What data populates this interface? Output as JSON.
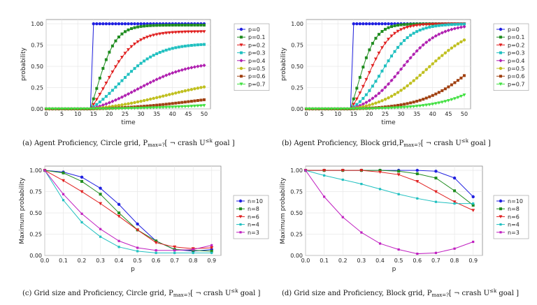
{
  "palettes": {
    "p": [
      "#2020e0",
      "#1f8c1f",
      "#e02020",
      "#20c0c0",
      "#b020b0",
      "#c0c020",
      "#a04010",
      "#40e040"
    ],
    "n": [
      "#2020e0",
      "#1f8c1f",
      "#e02020",
      "#20c0c0",
      "#c020c0"
    ]
  },
  "chart_data": [
    {
      "type": "line",
      "xlabel": "time",
      "ylabel": "probability",
      "xlim": [
        0,
        52
      ],
      "ylim": [
        0,
        1.05
      ],
      "xticks": [
        0,
        5,
        10,
        15,
        20,
        25,
        30,
        35,
        40,
        45,
        50
      ],
      "xtick_labels": [
        "0",
        "5",
        "10",
        "15",
        "20",
        "25",
        "30",
        "35",
        "40",
        "45",
        "50"
      ],
      "yticks": [
        0,
        0.25,
        0.5,
        0.75,
        1.0
      ],
      "ytick_labels": [
        "0.00",
        "0.25",
        "0.50",
        "0.75",
        "1.00"
      ],
      "grid": true,
      "legend": "right",
      "palette": "p",
      "caption": {
        "prefix": "(a)  Agent Proficiency, Circle grid, P",
        "sub": "max=?",
        "mid": "[ ¬ crash U",
        "sup": "≤k",
        "suffix": " goal ]"
      },
      "series": [
        {
          "name": "p=0",
          "t0": 14,
          "final": 1.0,
          "k": 10,
          "mid": 14
        },
        {
          "name": "p=0.1",
          "t0": 14,
          "final": 0.985,
          "k": 0.32,
          "mid": 15.8
        },
        {
          "name": "p=0.2",
          "t0": 14,
          "final": 0.91,
          "k": 0.22,
          "mid": 19
        },
        {
          "name": "p=0.3",
          "t0": 14,
          "final": 0.77,
          "k": 0.16,
          "mid": 23
        },
        {
          "name": "p=0.4",
          "t0": 14,
          "final": 0.56,
          "k": 0.12,
          "mid": 29
        },
        {
          "name": "p=0.5",
          "t0": 14,
          "final": 0.36,
          "k": 0.09,
          "mid": 38
        },
        {
          "name": "p=0.6",
          "t0": 14,
          "final": 0.2,
          "k": 0.085,
          "mid": 47
        },
        {
          "name": "p=0.7",
          "t0": 14,
          "final": 0.1,
          "k": 0.08,
          "mid": 54
        }
      ]
    },
    {
      "type": "line",
      "xlabel": "time",
      "ylabel": "probability",
      "xlim": [
        0,
        52
      ],
      "ylim": [
        0,
        1.05
      ],
      "xticks": [
        0,
        5,
        10,
        15,
        20,
        25,
        30,
        35,
        40,
        45,
        50
      ],
      "xtick_labels": [
        "0",
        "5",
        "10",
        "15",
        "20",
        "25",
        "30",
        "35",
        "40",
        "45",
        "50"
      ],
      "yticks": [
        0,
        0.25,
        0.5,
        0.75,
        1.0
      ],
      "ytick_labels": [
        "0.00",
        "0.25",
        "0.50",
        "0.75",
        "1.00"
      ],
      "grid": true,
      "legend": "right",
      "palette": "p",
      "caption": {
        "prefix": "(b)  Agent Proficiency, Block grid,P",
        "sub": "max=?",
        "mid": "[ ¬ crash U",
        "sup": "≤k",
        "suffix": " goal ]"
      },
      "series": [
        {
          "name": "p=0",
          "t0": 14,
          "final": 1.0,
          "k": 10,
          "mid": 14
        },
        {
          "name": "p=0.1",
          "t0": 14,
          "final": 1.0,
          "k": 0.35,
          "mid": 16.2
        },
        {
          "name": "p=0.2",
          "t0": 14,
          "final": 1.0,
          "k": 0.27,
          "mid": 19.5
        },
        {
          "name": "p=0.3",
          "t0": 14,
          "final": 1.0,
          "k": 0.22,
          "mid": 24
        },
        {
          "name": "p=0.4",
          "t0": 14,
          "final": 1.0,
          "k": 0.17,
          "mid": 30
        },
        {
          "name": "p=0.5",
          "t0": 14,
          "final": 1.0,
          "k": 0.13,
          "mid": 38.5
        },
        {
          "name": "p=0.6",
          "t0": 14,
          "final": 1.0,
          "k": 0.12,
          "mid": 53.5
        },
        {
          "name": "p=0.7",
          "t0": 14,
          "final": 1.0,
          "k": 0.115,
          "mid": 64
        }
      ]
    },
    {
      "type": "line",
      "xlabel": "p",
      "ylabel": "Maximum probability",
      "xlim": [
        0,
        0.95
      ],
      "ylim": [
        0,
        1.05
      ],
      "xticks": [
        0,
        0.1,
        0.2,
        0.3,
        0.4,
        0.5,
        0.6,
        0.7,
        0.8,
        0.9
      ],
      "xtick_labels": [
        "0.0",
        "0.1",
        "0.2",
        "0.3",
        "0.4",
        "0.5",
        "0.6",
        "0.7",
        "0.8",
        "0.9"
      ],
      "yticks": [
        0,
        0.25,
        0.5,
        0.75,
        1.0
      ],
      "ytick_labels": [
        "0.00",
        "0.25",
        "0.50",
        "0.75",
        "1.00"
      ],
      "grid": true,
      "legend": "right",
      "palette": "n",
      "x": [
        0,
        0.1,
        0.2,
        0.3,
        0.4,
        0.5,
        0.6,
        0.7,
        0.8,
        0.9
      ],
      "caption": {
        "prefix": "(c)  Grid size and Proficiency, Circle grid, P",
        "sub": "max=?",
        "mid": "[ ¬ crash U",
        "sup": "≤k",
        "suffix": " goal ]"
      },
      "series": [
        {
          "name": "n=10",
          "values": [
            1.0,
            0.98,
            0.92,
            0.79,
            0.6,
            0.37,
            0.17,
            0.07,
            0.05,
            0.07
          ]
        },
        {
          "name": "n=8",
          "values": [
            1.0,
            0.97,
            0.87,
            0.72,
            0.5,
            0.3,
            0.17,
            0.07,
            0.06,
            0.05
          ]
        },
        {
          "name": "n=6",
          "values": [
            1.0,
            0.88,
            0.75,
            0.61,
            0.46,
            0.3,
            0.15,
            0.1,
            0.08,
            0.09
          ]
        },
        {
          "name": "n=4",
          "values": [
            1.0,
            0.65,
            0.39,
            0.22,
            0.1,
            0.05,
            0.03,
            0.03,
            0.03,
            0.03
          ]
        },
        {
          "name": "n=3",
          "values": [
            1.0,
            0.72,
            0.49,
            0.31,
            0.17,
            0.09,
            0.06,
            0.06,
            0.07,
            0.12
          ]
        }
      ]
    },
    {
      "type": "line",
      "xlabel": "p",
      "ylabel": "Maximum probability",
      "xlim": [
        0,
        0.95
      ],
      "ylim": [
        0,
        1.05
      ],
      "xticks": [
        0,
        0.1,
        0.2,
        0.3,
        0.4,
        0.5,
        0.6,
        0.7,
        0.8,
        0.9
      ],
      "xtick_labels": [
        "0.0",
        "0.1",
        "0.2",
        "0.3",
        "0.4",
        "0.5",
        "0.6",
        "0.7",
        "0.8",
        "0.9"
      ],
      "yticks": [
        0,
        0.25,
        0.5,
        0.75,
        1.0
      ],
      "ytick_labels": [
        "0.00",
        "0.25",
        "0.50",
        "0.75",
        "1.00"
      ],
      "grid": true,
      "legend": "right",
      "palette": "n",
      "x": [
        0,
        0.1,
        0.2,
        0.3,
        0.4,
        0.5,
        0.6,
        0.7,
        0.8,
        0.9
      ],
      "caption": {
        "prefix": "(d)  Grid size and Proficiency, Block grid, P",
        "sub": "max=?",
        "mid": "[ ¬ crash U",
        "sup": "≤k",
        "suffix": " goal ]"
      },
      "series": [
        {
          "name": "n=10",
          "values": [
            1.0,
            1.0,
            1.0,
            1.0,
            1.0,
            1.0,
            1.0,
            0.99,
            0.91,
            0.69
          ]
        },
        {
          "name": "n=8",
          "values": [
            1.0,
            1.0,
            1.0,
            1.0,
            1.0,
            0.99,
            0.96,
            0.91,
            0.76,
            0.59
          ]
        },
        {
          "name": "n=6",
          "values": [
            1.0,
            1.0,
            1.0,
            1.0,
            0.98,
            0.95,
            0.87,
            0.75,
            0.63,
            0.53
          ]
        },
        {
          "name": "n=4",
          "values": [
            1.0,
            0.94,
            0.89,
            0.84,
            0.78,
            0.72,
            0.67,
            0.63,
            0.61,
            0.61
          ]
        },
        {
          "name": "n=3",
          "values": [
            1.0,
            0.69,
            0.45,
            0.27,
            0.14,
            0.07,
            0.02,
            0.03,
            0.08,
            0.16
          ]
        }
      ]
    }
  ]
}
